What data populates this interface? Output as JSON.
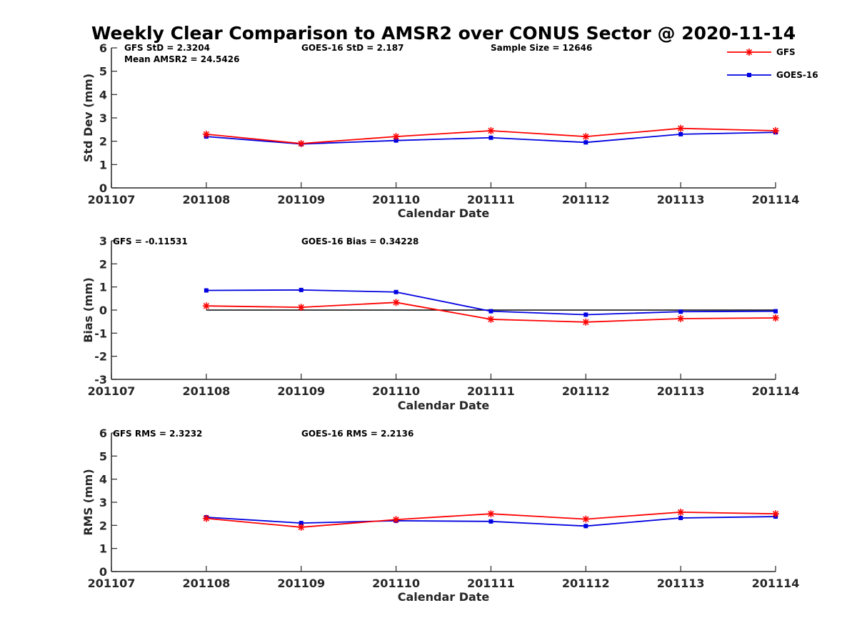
{
  "title": "Weekly Clear Comparison to AMSR2 over CONUS Sector @ 2020-11-14",
  "colors": {
    "GFS": "#ff0000",
    "GOES-16": "#0000e0",
    "axis": "#262626",
    "zero": "#000000"
  },
  "legend": {
    "placement": "top-right",
    "entries": [
      {
        "name": "GFS",
        "marker": "asterisk",
        "color": "#ff0000"
      },
      {
        "name": "GOES-16",
        "marker": "square",
        "color": "#0000e0"
      }
    ]
  },
  "chart_data": [
    {
      "type": "line",
      "xlabel": "Calendar Date",
      "ylabel": "Std Dev (mm)",
      "x_ticks": [
        "201107",
        "201108",
        "201109",
        "201110",
        "201111",
        "201112",
        "201113",
        "201114"
      ],
      "ylim": [
        0,
        6
      ],
      "y_ticks": [
        0,
        1,
        2,
        3,
        4,
        5,
        6
      ],
      "grid": false,
      "annotations": [
        "GFS StD = 2.3204",
        "Mean AMSR2 = 24.5426",
        "GOES-16 StD = 2.187",
        "Sample Size = 12646"
      ],
      "series": [
        {
          "name": "GFS",
          "x": [
            "201108",
            "201109",
            "201110",
            "201111",
            "201112",
            "201113",
            "201114"
          ],
          "values": [
            2.3,
            1.9,
            2.2,
            2.45,
            2.2,
            2.55,
            2.45
          ]
        },
        {
          "name": "GOES-16",
          "x": [
            "201108",
            "201109",
            "201110",
            "201111",
            "201112",
            "201113",
            "201114"
          ],
          "values": [
            2.2,
            1.88,
            2.03,
            2.15,
            1.95,
            2.3,
            2.38
          ]
        }
      ]
    },
    {
      "type": "line",
      "xlabel": "Calendar Date",
      "ylabel": "Bias (mm)",
      "x_ticks": [
        "201107",
        "201108",
        "201109",
        "201110",
        "201111",
        "201112",
        "201113",
        "201114"
      ],
      "ylim": [
        -3,
        3
      ],
      "y_ticks": [
        -3,
        -2,
        -1,
        0,
        1,
        2,
        3
      ],
      "grid": false,
      "zero_line": {
        "from": "201108",
        "to": "201114",
        "value": 0
      },
      "annotations": [
        "GFS = -0.11531",
        "GOES-16 Bias  = 0.34228"
      ],
      "series": [
        {
          "name": "GFS",
          "x": [
            "201108",
            "201109",
            "201110",
            "201111",
            "201112",
            "201113",
            "201114"
          ],
          "values": [
            0.18,
            0.12,
            0.33,
            -0.4,
            -0.52,
            -0.37,
            -0.34
          ]
        },
        {
          "name": "GOES-16",
          "x": [
            "201108",
            "201109",
            "201110",
            "201111",
            "201112",
            "201113",
            "201114"
          ],
          "values": [
            0.85,
            0.87,
            0.78,
            -0.05,
            -0.2,
            -0.07,
            -0.05
          ]
        }
      ]
    },
    {
      "type": "line",
      "xlabel": "Calendar Date",
      "ylabel": "RMS (mm)",
      "x_ticks": [
        "201107",
        "201108",
        "201109",
        "201110",
        "201111",
        "201112",
        "201113",
        "201114"
      ],
      "ylim": [
        0,
        6
      ],
      "y_ticks": [
        0,
        1,
        2,
        3,
        4,
        5,
        6
      ],
      "grid": false,
      "annotations": [
        "GFS RMS = 2.3232",
        "GOES-16 RMS = 2.2136"
      ],
      "series": [
        {
          "name": "GFS",
          "x": [
            "201108",
            "201109",
            "201110",
            "201111",
            "201112",
            "201113",
            "201114"
          ],
          "values": [
            2.3,
            1.92,
            2.25,
            2.5,
            2.27,
            2.57,
            2.5
          ]
        },
        {
          "name": "GOES-16",
          "x": [
            "201108",
            "201109",
            "201110",
            "201111",
            "201112",
            "201113",
            "201114"
          ],
          "values": [
            2.35,
            2.1,
            2.2,
            2.17,
            1.97,
            2.32,
            2.38
          ]
        }
      ]
    }
  ]
}
